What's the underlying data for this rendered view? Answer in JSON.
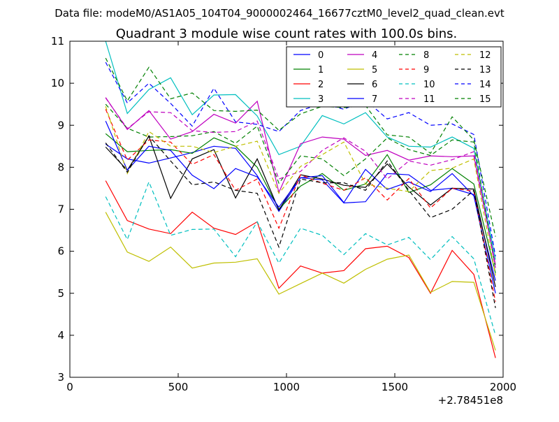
{
  "suptitle": "Data file: modeM0/AS1A05_104T04_9000002464_16677cztM0_level2_quad_clean.evt",
  "chart_data": {
    "type": "line",
    "title": "Quadrant 3 module wise count rates with 100.0s bins.",
    "xlabel": "",
    "ylabel": "",
    "x_offset_label": "+2.78451e8",
    "xlim": [
      0,
      2000
    ],
    "ylim": [
      3,
      11
    ],
    "xticks": [
      0,
      500,
      1000,
      1500,
      2000
    ],
    "yticks": [
      3,
      4,
      5,
      6,
      7,
      8,
      9,
      10,
      11
    ],
    "grid": false,
    "legend_position": "top-right",
    "legend_columns": 4,
    "x": [
      165,
      265,
      365,
      465,
      565,
      665,
      765,
      865,
      965,
      1065,
      1165,
      1265,
      1365,
      1465,
      1565,
      1665,
      1765,
      1865,
      1965
    ],
    "series": [
      {
        "name": "0",
        "color": "#0000ff",
        "dash": false,
        "values": [
          8.55,
          8.2,
          8.1,
          8.22,
          8.35,
          8.5,
          8.45,
          7.8,
          6.95,
          7.75,
          7.7,
          7.15,
          7.18,
          7.85,
          7.82,
          7.45,
          7.5,
          7.35,
          5.3
        ]
      },
      {
        "name": "1",
        "color": "#008000",
        "dash": false,
        "values": [
          8.8,
          8.37,
          8.4,
          8.42,
          8.33,
          8.7,
          8.5,
          8.0,
          7.0,
          7.55,
          7.85,
          7.45,
          7.6,
          8.3,
          7.4,
          7.58,
          7.97,
          7.6,
          5.48
        ]
      },
      {
        "name": "2",
        "color": "#ff0000",
        "dash": false,
        "values": [
          7.68,
          6.73,
          6.53,
          6.42,
          6.93,
          6.55,
          6.4,
          6.7,
          5.12,
          5.65,
          5.48,
          5.54,
          6.06,
          6.12,
          5.85,
          5.0,
          6.02,
          5.45,
          3.46
        ]
      },
      {
        "name": "3",
        "color": "#00bfbf",
        "dash": false,
        "values": [
          11.0,
          9.28,
          9.85,
          10.13,
          9.25,
          9.72,
          9.73,
          9.22,
          8.3,
          8.5,
          9.23,
          9.03,
          9.3,
          8.72,
          8.5,
          8.48,
          8.72,
          8.45,
          5.8
        ]
      },
      {
        "name": "4",
        "color": "#bf00bf",
        "dash": false,
        "values": [
          9.66,
          8.9,
          9.35,
          8.67,
          8.85,
          9.26,
          9.05,
          9.57,
          7.4,
          8.56,
          8.72,
          8.67,
          8.28,
          8.4,
          8.17,
          8.27,
          8.25,
          8.27,
          5.68
        ]
      },
      {
        "name": "5",
        "color": "#bfbf00",
        "dash": false,
        "values": [
          6.93,
          5.98,
          5.76,
          6.1,
          5.6,
          5.72,
          5.74,
          5.82,
          4.98,
          5.23,
          5.48,
          5.24,
          5.57,
          5.81,
          5.91,
          5.02,
          5.28,
          5.26,
          3.64
        ]
      },
      {
        "name": "6",
        "color": "#000000",
        "dash": false,
        "values": [
          8.48,
          7.93,
          8.74,
          7.26,
          8.2,
          8.42,
          7.27,
          8.2,
          6.98,
          7.82,
          7.72,
          7.57,
          7.52,
          8.08,
          7.53,
          7.1,
          7.5,
          7.48,
          5.15
        ]
      },
      {
        "name": "7",
        "color": "#0000ff",
        "dash": false,
        "values": [
          9.1,
          7.93,
          8.5,
          8.4,
          7.81,
          7.49,
          7.97,
          7.77,
          7.05,
          7.75,
          7.8,
          7.16,
          7.95,
          7.47,
          7.65,
          7.42,
          7.85,
          7.32,
          5.0
        ]
      },
      {
        "name": "8",
        "color": "#008000",
        "dash": true,
        "values": [
          9.5,
          8.93,
          8.72,
          8.73,
          8.75,
          8.85,
          8.57,
          8.98,
          7.62,
          8.27,
          8.2,
          7.8,
          8.2,
          8.7,
          8.42,
          8.28,
          8.65,
          8.6,
          5.58
        ]
      },
      {
        "name": "9",
        "color": "#ff0000",
        "dash": true,
        "values": [
          9.38,
          8.17,
          8.65,
          8.6,
          8.07,
          8.3,
          7.45,
          7.72,
          6.55,
          7.82,
          7.62,
          7.45,
          7.75,
          7.22,
          7.73,
          7.03,
          7.5,
          7.43,
          4.8
        ]
      },
      {
        "name": "10",
        "color": "#00bfbf",
        "dash": true,
        "values": [
          7.3,
          6.28,
          7.65,
          6.38,
          6.52,
          6.53,
          5.87,
          6.7,
          5.72,
          6.55,
          6.38,
          5.92,
          6.42,
          6.15,
          6.33,
          5.8,
          6.35,
          5.82,
          4.0
        ]
      },
      {
        "name": "11",
        "color": "#bf00bf",
        "dash": true,
        "values": [
          9.65,
          8.92,
          9.32,
          9.3,
          8.87,
          8.83,
          8.85,
          9.1,
          7.72,
          7.9,
          8.4,
          8.7,
          8.38,
          7.72,
          8.15,
          8.05,
          8.18,
          8.37,
          5.6
        ]
      },
      {
        "name": "12",
        "color": "#bfbf00",
        "dash": true,
        "values": [
          9.45,
          7.85,
          8.85,
          8.5,
          8.5,
          8.35,
          8.5,
          8.62,
          7.38,
          8.02,
          8.3,
          8.6,
          7.6,
          7.5,
          7.42,
          7.92,
          7.98,
          8.2,
          5.42
        ]
      },
      {
        "name": "13",
        "color": "#000000",
        "dash": true,
        "values": [
          8.58,
          7.88,
          8.75,
          8.15,
          7.58,
          7.65,
          7.45,
          7.38,
          6.1,
          7.72,
          7.63,
          7.63,
          7.45,
          8.15,
          7.45,
          6.8,
          7.0,
          7.45,
          4.65
        ]
      },
      {
        "name": "14",
        "color": "#0000ff",
        "dash": true,
        "values": [
          10.5,
          9.53,
          10.0,
          9.52,
          8.98,
          9.88,
          9.08,
          9.02,
          8.85,
          9.35,
          9.52,
          9.38,
          9.6,
          9.15,
          9.3,
          9.0,
          9.03,
          8.78,
          5.88
        ]
      },
      {
        "name": "15",
        "color": "#008000",
        "dash": true,
        "values": [
          10.6,
          9.58,
          10.38,
          9.63,
          9.77,
          9.35,
          9.33,
          9.36,
          8.88,
          9.27,
          9.45,
          9.42,
          9.47,
          8.77,
          8.72,
          8.33,
          9.2,
          8.65,
          6.35
        ]
      }
    ]
  }
}
